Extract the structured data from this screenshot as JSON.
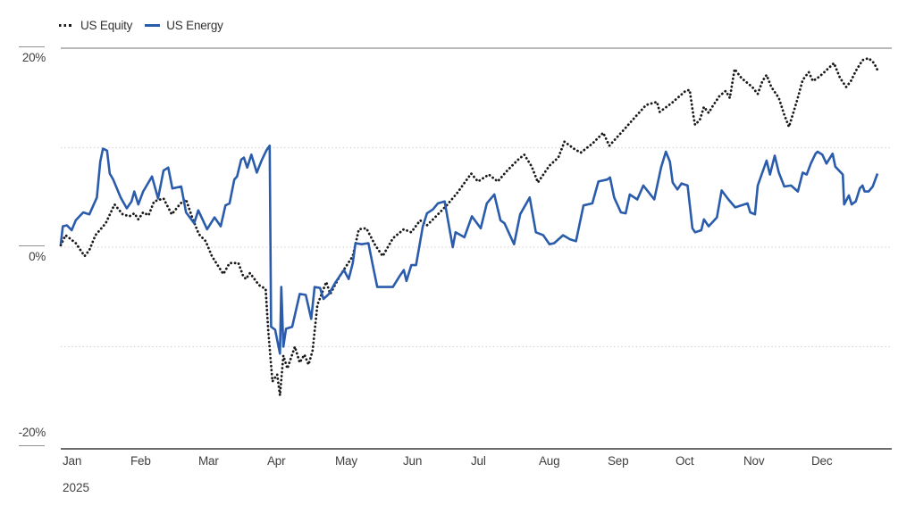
{
  "chart_data": {
    "type": "line",
    "title": "",
    "xlabel": "",
    "ylabel": "",
    "grid": "horizontal-dotted",
    "legend_position": "top-left",
    "x_axis": {
      "unit": "months",
      "year_label": "2025",
      "tick_labels": [
        "Jan",
        "Feb",
        "Mar",
        "Apr",
        "May",
        "Jun",
        "Jul",
        "Aug",
        "Sep",
        "Oct",
        "Nov",
        "Dec"
      ],
      "range_months": [
        0,
        12
      ]
    },
    "y_axis": {
      "unit": "%",
      "range": [
        -20,
        20
      ],
      "gridlines": [
        20,
        10,
        0,
        -10
      ],
      "labeled_ticks": [
        {
          "value": 20,
          "label": "20%"
        },
        {
          "value": 0,
          "label": "0%"
        },
        {
          "value": -20,
          "label": "-20%"
        }
      ]
    },
    "series": [
      {
        "name": "US Equity",
        "style": "dotted",
        "color": "#1a1a1a",
        "points": [
          [
            0,
            0.2
          ],
          [
            0.07,
            1.2
          ],
          [
            0.13,
            0.9
          ],
          [
            0.22,
            0.4
          ],
          [
            0.32,
            -0.6
          ],
          [
            0.35,
            -0.9
          ],
          [
            0.42,
            -0.3
          ],
          [
            0.51,
            1.2
          ],
          [
            0.66,
            2.4
          ],
          [
            0.79,
            4.3
          ],
          [
            0.91,
            3.3
          ],
          [
            1.01,
            3.1
          ],
          [
            1.08,
            3.4
          ],
          [
            1.14,
            2.8
          ],
          [
            1.21,
            3.5
          ],
          [
            1.29,
            3.2
          ],
          [
            1.37,
            4.6
          ],
          [
            1.51,
            4.9
          ],
          [
            1.63,
            3.3
          ],
          [
            1.76,
            4.4
          ],
          [
            1.84,
            4.8
          ],
          [
            1.93,
            3.0
          ],
          [
            2.03,
            1.3
          ],
          [
            2.13,
            0.6
          ],
          [
            2.22,
            -0.9
          ],
          [
            2.35,
            -2.3
          ],
          [
            2.39,
            -2.7
          ],
          [
            2.48,
            -1.6
          ],
          [
            2.61,
            -1.6
          ],
          [
            2.68,
            -2.9
          ],
          [
            2.72,
            -3.2
          ],
          [
            2.78,
            -2.6
          ],
          [
            2.91,
            -3.8
          ],
          [
            3.01,
            -4.2
          ],
          [
            3.05,
            -8.5
          ],
          [
            3.11,
            -13.5
          ],
          [
            3.18,
            -12.8
          ],
          [
            3.22,
            -14.9
          ],
          [
            3.27,
            -10.9
          ],
          [
            3.33,
            -12.2
          ],
          [
            3.44,
            -10.0
          ],
          [
            3.51,
            -11.6
          ],
          [
            3.58,
            -10.8
          ],
          [
            3.64,
            -11.8
          ],
          [
            3.7,
            -10.4
          ],
          [
            3.77,
            -5.8
          ],
          [
            3.9,
            -3.5
          ],
          [
            3.96,
            -4.7
          ],
          [
            4.1,
            -2.9
          ],
          [
            4.29,
            -0.9
          ],
          [
            4.38,
            1.8
          ],
          [
            4.49,
            1.9
          ],
          [
            4.62,
            0.2
          ],
          [
            4.73,
            -0.9
          ],
          [
            4.88,
            0.9
          ],
          [
            5.04,
            1.8
          ],
          [
            5.15,
            1.5
          ],
          [
            5.28,
            2.7
          ],
          [
            5.38,
            2.2
          ],
          [
            5.47,
            2.8
          ],
          [
            5.67,
            4.2
          ],
          [
            5.83,
            5.5
          ],
          [
            6.03,
            7.4
          ],
          [
            6.13,
            6.6
          ],
          [
            6.29,
            7.3
          ],
          [
            6.42,
            6.6
          ],
          [
            6.56,
            7.7
          ],
          [
            6.72,
            8.8
          ],
          [
            6.81,
            9.3
          ],
          [
            6.92,
            8.1
          ],
          [
            7.01,
            6.5
          ],
          [
            7.18,
            8.2
          ],
          [
            7.31,
            9.0
          ],
          [
            7.4,
            10.6
          ],
          [
            7.54,
            9.9
          ],
          [
            7.64,
            9.5
          ],
          [
            7.81,
            10.4
          ],
          [
            7.97,
            11.5
          ],
          [
            8.06,
            10.2
          ],
          [
            8.26,
            11.7
          ],
          [
            8.43,
            13.0
          ],
          [
            8.6,
            14.3
          ],
          [
            8.76,
            14.6
          ],
          [
            8.8,
            13.6
          ],
          [
            8.86,
            13.9
          ],
          [
            8.98,
            14.5
          ],
          [
            9.18,
            15.7
          ],
          [
            9.24,
            15.8
          ],
          [
            9.3,
            13.0
          ],
          [
            9.32,
            12.3
          ],
          [
            9.39,
            12.8
          ],
          [
            9.45,
            14.1
          ],
          [
            9.52,
            13.5
          ],
          [
            9.58,
            14.2
          ],
          [
            9.68,
            15.2
          ],
          [
            9.77,
            15.7
          ],
          [
            9.83,
            15.0
          ],
          [
            9.9,
            17.9
          ],
          [
            10.0,
            17.0
          ],
          [
            10.16,
            16.1
          ],
          [
            10.24,
            15.4
          ],
          [
            10.31,
            16.7
          ],
          [
            10.37,
            17.3
          ],
          [
            10.44,
            16.1
          ],
          [
            10.55,
            15.0
          ],
          [
            10.63,
            13.3
          ],
          [
            10.7,
            12.1
          ],
          [
            10.82,
            14.8
          ],
          [
            10.9,
            16.8
          ],
          [
            10.99,
            17.6
          ],
          [
            11.05,
            16.7
          ],
          [
            11.12,
            17.0
          ],
          [
            11.19,
            17.4
          ],
          [
            11.36,
            18.5
          ],
          [
            11.45,
            17.0
          ],
          [
            11.54,
            16.1
          ],
          [
            11.61,
            16.7
          ],
          [
            11.68,
            17.7
          ],
          [
            11.78,
            18.8
          ],
          [
            11.87,
            19.0
          ],
          [
            11.95,
            18.5
          ],
          [
            12.0,
            17.8
          ]
        ]
      },
      {
        "name": "US Energy",
        "style": "solid",
        "color": "#2a5cab",
        "points": [
          [
            0,
            0.3
          ],
          [
            0.03,
            2.1
          ],
          [
            0.09,
            2.2
          ],
          [
            0.16,
            1.7
          ],
          [
            0.22,
            2.7
          ],
          [
            0.33,
            3.5
          ],
          [
            0.42,
            3.3
          ],
          [
            0.53,
            5.0
          ],
          [
            0.58,
            8.6
          ],
          [
            0.62,
            9.9
          ],
          [
            0.68,
            9.7
          ],
          [
            0.72,
            7.4
          ],
          [
            0.77,
            6.8
          ],
          [
            0.88,
            5.0
          ],
          [
            0.97,
            3.9
          ],
          [
            1.04,
            4.6
          ],
          [
            1.08,
            5.6
          ],
          [
            1.14,
            4.3
          ],
          [
            1.21,
            5.6
          ],
          [
            1.34,
            7.1
          ],
          [
            1.43,
            4.9
          ],
          [
            1.51,
            7.7
          ],
          [
            1.58,
            8.0
          ],
          [
            1.64,
            5.9
          ],
          [
            1.77,
            6.1
          ],
          [
            1.84,
            3.5
          ],
          [
            1.96,
            2.4
          ],
          [
            2.02,
            3.7
          ],
          [
            2.15,
            1.8
          ],
          [
            2.26,
            3.0
          ],
          [
            2.35,
            2.1
          ],
          [
            2.42,
            4.2
          ],
          [
            2.48,
            4.4
          ],
          [
            2.55,
            6.8
          ],
          [
            2.59,
            7.1
          ],
          [
            2.65,
            8.8
          ],
          [
            2.69,
            9.0
          ],
          [
            2.74,
            8.0
          ],
          [
            2.8,
            9.3
          ],
          [
            2.88,
            7.5
          ],
          [
            2.95,
            8.7
          ],
          [
            3.02,
            9.7
          ],
          [
            3.07,
            10.2
          ],
          [
            3.09,
            -8.0
          ],
          [
            3.15,
            -8.3
          ],
          [
            3.22,
            -10.7
          ],
          [
            3.24,
            -4.0
          ],
          [
            3.27,
            -10.0
          ],
          [
            3.31,
            -8.2
          ],
          [
            3.4,
            -8.0
          ],
          [
            3.51,
            -4.7
          ],
          [
            3.6,
            -4.8
          ],
          [
            3.68,
            -7.2
          ],
          [
            3.73,
            -4.0
          ],
          [
            3.81,
            -4.1
          ],
          [
            3.86,
            -5.2
          ],
          [
            3.94,
            -4.7
          ],
          [
            4.03,
            -3.6
          ],
          [
            4.1,
            -2.9
          ],
          [
            4.16,
            -2.3
          ],
          [
            4.23,
            -3.2
          ],
          [
            4.29,
            -1.6
          ],
          [
            4.33,
            0.4
          ],
          [
            4.42,
            0.3
          ],
          [
            4.52,
            0.4
          ],
          [
            4.59,
            -2.0
          ],
          [
            4.65,
            -4.0
          ],
          [
            4.78,
            -4.0
          ],
          [
            4.88,
            -4.0
          ],
          [
            4.98,
            -2.9
          ],
          [
            5.04,
            -2.3
          ],
          [
            5.08,
            -3.4
          ],
          [
            5.15,
            -1.8
          ],
          [
            5.22,
            -1.8
          ],
          [
            5.32,
            2.1
          ],
          [
            5.38,
            3.4
          ],
          [
            5.47,
            3.8
          ],
          [
            5.54,
            4.4
          ],
          [
            5.64,
            4.6
          ],
          [
            5.76,
            0.0
          ],
          [
            5.8,
            1.5
          ],
          [
            5.93,
            1.0
          ],
          [
            6.04,
            3.1
          ],
          [
            6.17,
            1.9
          ],
          [
            6.26,
            4.4
          ],
          [
            6.37,
            5.3
          ],
          [
            6.46,
            2.7
          ],
          [
            6.52,
            2.4
          ],
          [
            6.66,
            0.3
          ],
          [
            6.75,
            3.3
          ],
          [
            6.89,
            5.0
          ],
          [
            6.98,
            1.5
          ],
          [
            7.09,
            1.2
          ],
          [
            7.18,
            0.3
          ],
          [
            7.25,
            0.4
          ],
          [
            7.38,
            1.2
          ],
          [
            7.48,
            0.8
          ],
          [
            7.57,
            0.6
          ],
          [
            7.68,
            4.2
          ],
          [
            7.81,
            4.4
          ],
          [
            7.9,
            6.6
          ],
          [
            8.03,
            6.8
          ],
          [
            8.07,
            7.0
          ],
          [
            8.13,
            5.0
          ],
          [
            8.23,
            3.5
          ],
          [
            8.3,
            3.4
          ],
          [
            8.36,
            5.3
          ],
          [
            8.47,
            4.8
          ],
          [
            8.56,
            6.2
          ],
          [
            8.64,
            5.5
          ],
          [
            8.72,
            4.8
          ],
          [
            8.82,
            8.0
          ],
          [
            8.89,
            9.6
          ],
          [
            8.95,
            8.6
          ],
          [
            8.99,
            6.5
          ],
          [
            9.06,
            5.8
          ],
          [
            9.12,
            6.4
          ],
          [
            9.21,
            6.2
          ],
          [
            9.28,
            1.9
          ],
          [
            9.32,
            1.5
          ],
          [
            9.41,
            1.7
          ],
          [
            9.45,
            2.8
          ],
          [
            9.52,
            2.1
          ],
          [
            9.64,
            3.0
          ],
          [
            9.71,
            5.7
          ],
          [
            9.81,
            4.8
          ],
          [
            9.91,
            4.0
          ],
          [
            10.09,
            4.4
          ],
          [
            10.13,
            3.5
          ],
          [
            10.2,
            3.3
          ],
          [
            10.24,
            6.2
          ],
          [
            10.37,
            8.7
          ],
          [
            10.42,
            7.3
          ],
          [
            10.49,
            9.2
          ],
          [
            10.55,
            7.5
          ],
          [
            10.63,
            6.1
          ],
          [
            10.73,
            6.2
          ],
          [
            10.83,
            5.6
          ],
          [
            10.9,
            7.5
          ],
          [
            10.96,
            7.3
          ],
          [
            11.02,
            8.4
          ],
          [
            11.09,
            9.4
          ],
          [
            11.12,
            9.6
          ],
          [
            11.19,
            9.3
          ],
          [
            11.25,
            8.4
          ],
          [
            11.34,
            9.4
          ],
          [
            11.38,
            8.1
          ],
          [
            11.49,
            7.3
          ],
          [
            11.51,
            4.3
          ],
          [
            11.58,
            5.2
          ],
          [
            11.62,
            4.3
          ],
          [
            11.68,
            4.6
          ],
          [
            11.74,
            5.9
          ],
          [
            11.78,
            6.2
          ],
          [
            11.81,
            5.6
          ],
          [
            11.87,
            5.6
          ],
          [
            11.93,
            6.1
          ],
          [
            12.0,
            7.4
          ]
        ]
      }
    ]
  },
  "colors": {
    "equity": "#1a1a1a",
    "energy": "#2a5cab",
    "grid_dotted": "#d2d2d2",
    "grid_top": "#8f8f8f",
    "axis": "#3d3d3d",
    "label_text": "#3f3f3f"
  }
}
